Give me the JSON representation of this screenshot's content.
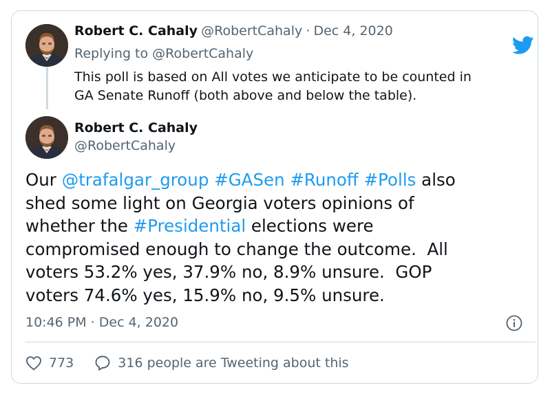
{
  "colors": {
    "accent": "#1d9bf0",
    "text": "#0f1419",
    "muted": "#536471",
    "border": "#cfd9de"
  },
  "reply_tweet": {
    "author_name": "Robert C. Cahaly",
    "author_handle": "@RobertCahaly",
    "separator": "·",
    "date": "Dec 4, 2020",
    "replying_prefix": "Replying to ",
    "replying_handle": "@RobertCahaly",
    "text_line1": "This poll is based on All votes we anticipate to be counted in",
    "text_line2": "GA Senate Runoff (both above and below the table)."
  },
  "main_tweet": {
    "author_name": "Robert C. Cahaly",
    "author_handle": "@RobertCahaly",
    "text": {
      "w1": "Our ",
      "mention": "@trafalgar_group",
      "sp1": " ",
      "tag1": "#GASen",
      "sp2": " ",
      "tag2": "#Runoff",
      "sp3": " ",
      "tag3": "#Polls",
      "w2": " also",
      "line2": "shed some light on Georgia voters opinions of",
      "w3": "whether the ",
      "tag4": "#Presidential",
      "w4": " elections were",
      "line4": "compromised enough to change the outcome.  All",
      "line5": "voters 53.2% yes, 37.9% no, 8.9% unsure.  GOP",
      "line6": "voters 74.6% yes, 15.9% no, 9.5% unsure."
    },
    "timestamp": "10:46 PM · Dec 4, 2020",
    "likes_count": "773",
    "conversation_text": "316 people are Tweeting about this"
  },
  "icons": {
    "brand": "twitter-bird-icon",
    "info": "info-icon",
    "like": "heart-icon",
    "reply": "speech-bubble-icon"
  }
}
